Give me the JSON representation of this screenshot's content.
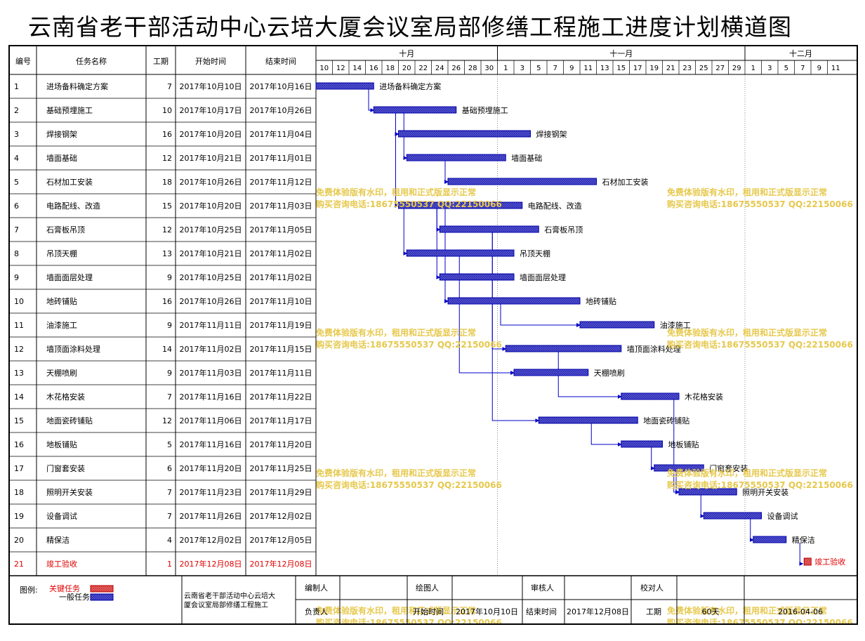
{
  "title": "云南省老干部活动中心云培大厦会议室局部修缮工程施工进度计划横道图",
  "columns": {
    "id": "编号",
    "name": "任务名称",
    "duration": "工期",
    "start": "开始时间",
    "end": "结束时间"
  },
  "months": [
    "十月",
    "十一月",
    "十二月"
  ],
  "day_ticks": [
    "10",
    "12",
    "14",
    "16",
    "18",
    "20",
    "22",
    "24",
    "26",
    "28",
    "30",
    "1",
    "3",
    "5",
    "7",
    "9",
    "11",
    "13",
    "15",
    "17",
    "19",
    "21",
    "23",
    "25",
    "27",
    "29",
    "1",
    "3",
    "5",
    "7",
    "9",
    "11"
  ],
  "legend": {
    "label": "图例:",
    "critical": "关键任务",
    "normal": "一般任务"
  },
  "footer": {
    "project_name": "云南省老干部活动中心云培大厦会议室局部修缮工程施工",
    "compiler_label": "编制人",
    "drawer_label": "绘图人",
    "reviewer_label": "审核人",
    "checker_label": "校对人",
    "owner_label": "负责人",
    "start_label": "开始时间",
    "start_value": "2017年10月10日",
    "end_label": "结束时间",
    "end_value": "2017年12月08日",
    "duration_label": "工期",
    "duration_value": "60天",
    "date_value": "2016-04-06"
  },
  "watermark": {
    "line1": "免费体验版有水印，租用和正式版显示正常",
    "line2": "购买咨询电话:18675550537 QQ:22150066"
  },
  "colors": {
    "bar_fill": "#3d3dcc",
    "bar_border": "#0000aa",
    "link": "#0000cc",
    "critical_text": "#e00000",
    "critical_fill": "#e05050",
    "watermark": "#e6c84c",
    "frame": "#000000",
    "grid": "#808080"
  },
  "chart_data": {
    "type": "gantt",
    "tasks": [
      {
        "id": "1",
        "name": "进场备料确定方案",
        "duration": 7,
        "start": "2017年10月10日",
        "end": "2017年10月16日",
        "critical": false
      },
      {
        "id": "2",
        "name": "基础预埋施工",
        "duration": 10,
        "start": "2017年10月17日",
        "end": "2017年10月26日",
        "critical": false
      },
      {
        "id": "3",
        "name": "焊接钢架",
        "duration": 16,
        "start": "2017年10月20日",
        "end": "2017年11月04日",
        "critical": false
      },
      {
        "id": "4",
        "name": "墙面基础",
        "duration": 12,
        "start": "2017年10月21日",
        "end": "2017年11月01日",
        "critical": false
      },
      {
        "id": "5",
        "name": "石材加工安装",
        "duration": 18,
        "start": "2017年10月26日",
        "end": "2017年11月12日",
        "critical": false
      },
      {
        "id": "6",
        "name": "电路配线、改造",
        "duration": 15,
        "start": "2017年10月20日",
        "end": "2017年11月03日",
        "critical": false
      },
      {
        "id": "7",
        "name": "石膏板吊顶",
        "duration": 12,
        "start": "2017年10月25日",
        "end": "2017年11月05日",
        "critical": false
      },
      {
        "id": "8",
        "name": "吊顶天棚",
        "duration": 13,
        "start": "2017年10月21日",
        "end": "2017年11月02日",
        "critical": false
      },
      {
        "id": "9",
        "name": "墙面面层处理",
        "duration": 9,
        "start": "2017年10月25日",
        "end": "2017年11月02日",
        "critical": false
      },
      {
        "id": "10",
        "name": "地砖铺贴",
        "duration": 16,
        "start": "2017年10月26日",
        "end": "2017年11月10日",
        "critical": false
      },
      {
        "id": "11",
        "name": "油漆施工",
        "duration": 9,
        "start": "2017年11月11日",
        "end": "2017年11月19日",
        "critical": false
      },
      {
        "id": "12",
        "name": "墙顶面涂料处理",
        "duration": 14,
        "start": "2017年11月02日",
        "end": "2017年11月15日",
        "critical": false
      },
      {
        "id": "13",
        "name": "天棚喷刷",
        "duration": 9,
        "start": "2017年11月03日",
        "end": "2017年11月11日",
        "critical": false
      },
      {
        "id": "14",
        "name": "木花格安装",
        "duration": 7,
        "start": "2017年11月16日",
        "end": "2017年11月22日",
        "critical": false
      },
      {
        "id": "15",
        "name": "地面瓷砖铺贴",
        "duration": 12,
        "start": "2017年11月06日",
        "end": "2017年11月17日",
        "critical": false
      },
      {
        "id": "16",
        "name": "地板铺贴",
        "duration": 5,
        "start": "2017年11月16日",
        "end": "2017年11月20日",
        "critical": false
      },
      {
        "id": "17",
        "name": "门窗套安装",
        "duration": 6,
        "start": "2017年11月20日",
        "end": "2017年11月25日",
        "critical": false
      },
      {
        "id": "18",
        "name": "照明开关安装",
        "duration": 7,
        "start": "2017年11月23日",
        "end": "2017年11月29日",
        "critical": false
      },
      {
        "id": "19",
        "name": "设备调试",
        "duration": 7,
        "start": "2017年11月26日",
        "end": "2017年12月02日",
        "critical": false
      },
      {
        "id": "20",
        "name": "精保洁",
        "duration": 4,
        "start": "2017年12月02日",
        "end": "2017年12月05日",
        "critical": false
      },
      {
        "id": "21",
        "name": "竣工验收",
        "duration": 1,
        "start": "2017年12月08日",
        "end": "2017年12月08日",
        "critical": true
      }
    ],
    "links": [
      [
        1,
        2
      ],
      [
        2,
        3
      ],
      [
        2,
        4
      ],
      [
        2,
        6
      ],
      [
        4,
        5
      ],
      [
        6,
        7
      ],
      [
        6,
        8
      ],
      [
        6,
        9
      ],
      [
        6,
        10
      ],
      [
        7,
        12
      ],
      [
        8,
        13
      ],
      [
        7,
        15
      ],
      [
        10,
        11
      ],
      [
        12,
        14
      ],
      [
        15,
        16
      ],
      [
        16,
        17
      ],
      [
        14,
        18
      ],
      [
        17,
        18
      ],
      [
        18,
        19
      ],
      [
        19,
        20
      ],
      [
        20,
        21
      ]
    ]
  }
}
